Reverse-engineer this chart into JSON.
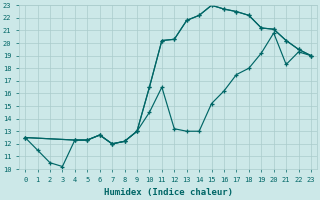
{
  "xlabel": "Humidex (Indice chaleur)",
  "bg_color": "#cce8e8",
  "line_color": "#006666",
  "grid_color": "#aacccc",
  "xlim": [
    -0.5,
    23.5
  ],
  "ylim": [
    10,
    23
  ],
  "xticks": [
    0,
    1,
    2,
    3,
    4,
    5,
    6,
    7,
    8,
    9,
    10,
    11,
    12,
    13,
    14,
    15,
    16,
    17,
    18,
    19,
    20,
    21,
    22,
    23
  ],
  "yticks": [
    10,
    11,
    12,
    13,
    14,
    15,
    16,
    17,
    18,
    19,
    20,
    21,
    22,
    23
  ],
  "line1": {
    "x": [
      0,
      1,
      2,
      3,
      4,
      5,
      6,
      7,
      8,
      9,
      10,
      11,
      12,
      13,
      14,
      15,
      16,
      17,
      18,
      19,
      20,
      21,
      22,
      23
    ],
    "y": [
      12.5,
      11.5,
      10.5,
      10.2,
      12.3,
      12.3,
      12.7,
      12.0,
      12.2,
      13.0,
      16.5,
      20.2,
      20.3,
      21.8,
      22.2,
      23.0,
      22.7,
      22.5,
      22.2,
      21.2,
      21.1,
      20.2,
      19.5,
      19.0
    ]
  },
  "line2": {
    "x": [
      0,
      4,
      5,
      6,
      7,
      8,
      9,
      10,
      11,
      12,
      13,
      14,
      15,
      16,
      17,
      18,
      19,
      20,
      21,
      22,
      23
    ],
    "y": [
      12.5,
      12.3,
      12.3,
      12.7,
      12.0,
      12.2,
      13.0,
      14.5,
      16.5,
      13.2,
      13.0,
      13.0,
      15.2,
      16.2,
      17.5,
      18.0,
      19.2,
      20.8,
      18.3,
      19.3,
      19.0
    ]
  },
  "line3": {
    "x": [
      0,
      4,
      5,
      6,
      7,
      8,
      9,
      10,
      11,
      12,
      13,
      14,
      15,
      16,
      17,
      18,
      19,
      20,
      21,
      22,
      23
    ],
    "y": [
      12.5,
      12.3,
      12.3,
      12.7,
      12.0,
      12.2,
      13.0,
      16.5,
      20.2,
      20.3,
      21.8,
      22.2,
      23.0,
      22.7,
      22.5,
      22.2,
      21.2,
      21.1,
      20.2,
      19.5,
      19.0
    ]
  }
}
